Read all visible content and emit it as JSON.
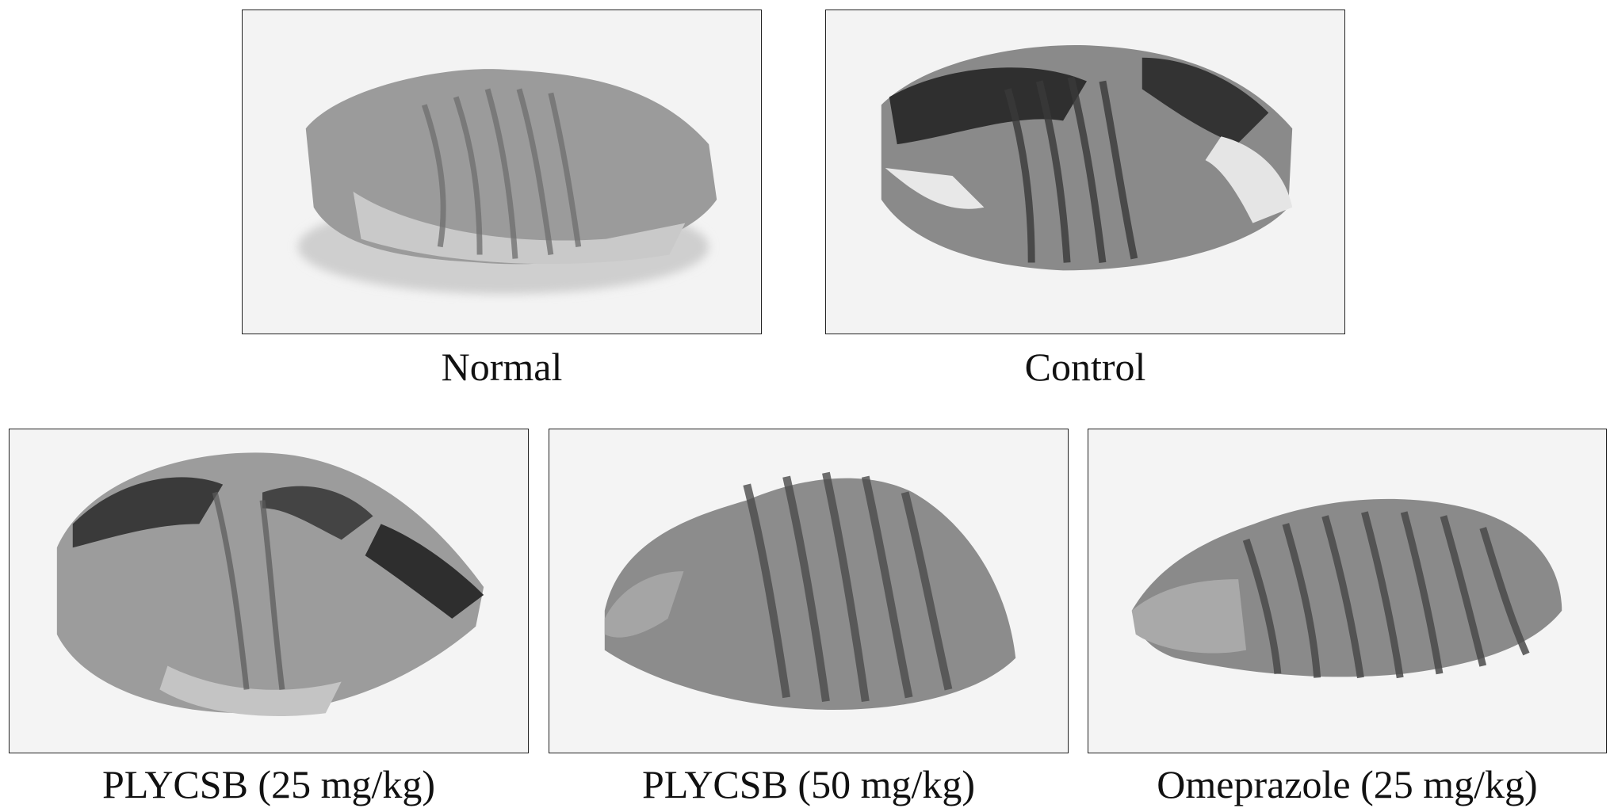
{
  "figure": {
    "panels": [
      {
        "id": "normal",
        "caption": "Normal"
      },
      {
        "id": "control",
        "caption": "Control"
      },
      {
        "id": "ply25",
        "caption": "PLYCSB (25 mg/kg)"
      },
      {
        "id": "ply50",
        "caption": "PLYCSB (50 mg/kg)"
      },
      {
        "id": "omep",
        "caption": "Omeprazole (25 mg/kg)"
      }
    ]
  }
}
